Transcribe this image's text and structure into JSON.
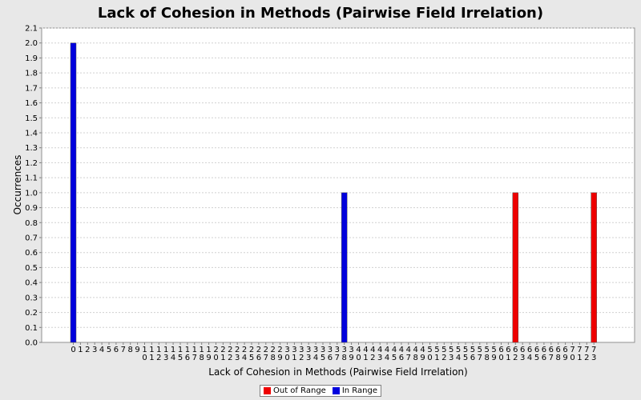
{
  "chart_data": {
    "type": "bar",
    "title": "Lack of Cohesion in Methods (Pairwise Field Irrelation)",
    "xlabel": "Lack of Cohesion in Methods (Pairwise Field Irrelation)",
    "ylabel": "Occurrences",
    "ylim": [
      0,
      2.1
    ],
    "yticks": [
      "0.0",
      "0.1",
      "0.2",
      "0.3",
      "0.4",
      "0.5",
      "0.6",
      "0.7",
      "0.8",
      "0.9",
      "1.0",
      "1.1",
      "1.2",
      "1.3",
      "1.4",
      "1.5",
      "1.6",
      "1.7",
      "1.8",
      "1.9",
      "2.0",
      "2.1"
    ],
    "categories": [
      "0",
      "1",
      "2",
      "3",
      "4",
      "5",
      "6",
      "7",
      "8",
      "9",
      "10",
      "11",
      "12",
      "13",
      "14",
      "15",
      "16",
      "17",
      "18",
      "19",
      "20",
      "21",
      "22",
      "23",
      "24",
      "25",
      "26",
      "27",
      "28",
      "29",
      "30",
      "31",
      "32",
      "33",
      "34",
      "35",
      "36",
      "37",
      "38",
      "39",
      "40",
      "41",
      "42",
      "43",
      "44",
      "45",
      "46",
      "47",
      "48",
      "49",
      "50",
      "51",
      "52",
      "53",
      "54",
      "55",
      "56",
      "57",
      "58",
      "59",
      "60",
      "61",
      "62",
      "63",
      "64",
      "65",
      "66",
      "67",
      "68",
      "69",
      "70",
      "71",
      "72",
      "73"
    ],
    "series": [
      {
        "name": "Out of Range",
        "color": "#ee0000",
        "points": [
          {
            "x": "62",
            "y": 1.0
          },
          {
            "x": "73",
            "y": 1.0
          }
        ]
      },
      {
        "name": "In Range",
        "color": "#0000dd",
        "points": [
          {
            "x": "0",
            "y": 2.0
          },
          {
            "x": "38",
            "y": 1.0
          }
        ]
      }
    ],
    "grid": true,
    "legend_position": "bottom"
  }
}
